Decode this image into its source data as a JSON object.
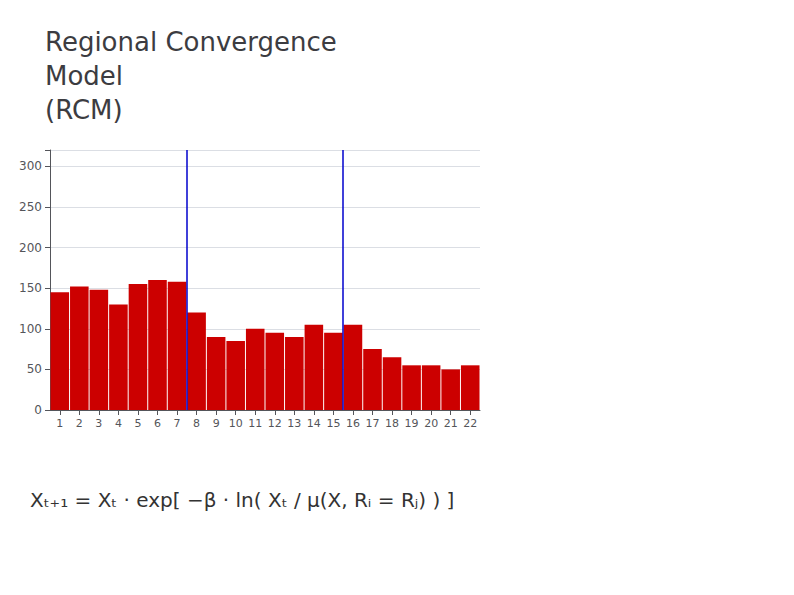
{
  "chart_data": {
    "type": "bar",
    "title": "Regional Convergence\nModel\n(RCM)",
    "x": [
      1,
      2,
      3,
      4,
      5,
      6,
      7,
      8,
      9,
      10,
      11,
      12,
      13,
      14,
      15,
      16,
      17,
      18,
      19,
      20,
      21,
      22
    ],
    "values": [
      145,
      152,
      148,
      130,
      155,
      160,
      158,
      120,
      90,
      85,
      100,
      95,
      90,
      105,
      95,
      105,
      75,
      65,
      55,
      55,
      50,
      55
    ],
    "color": "#cc0000",
    "xlim": [
      0.5,
      22.5
    ],
    "xticks": [
      1,
      2,
      3,
      4,
      5,
      6,
      7,
      8,
      9,
      10,
      11,
      12,
      13,
      14,
      15,
      16,
      17,
      18,
      19,
      20,
      21,
      22
    ],
    "ylim": [
      0,
      320
    ],
    "yticks": [
      0,
      50,
      100,
      150,
      200,
      250,
      300
    ],
    "grid": true,
    "vlines": {
      "values": [
        7.5,
        15.5
      ],
      "color": "#0000cc"
    },
    "annotations": [
      "Xₜ₊₁ = Xₜ · exp[ −β · ln( Xₜ / μ(X, Rᵢ = Rⱼ) ) ]"
    ]
  }
}
